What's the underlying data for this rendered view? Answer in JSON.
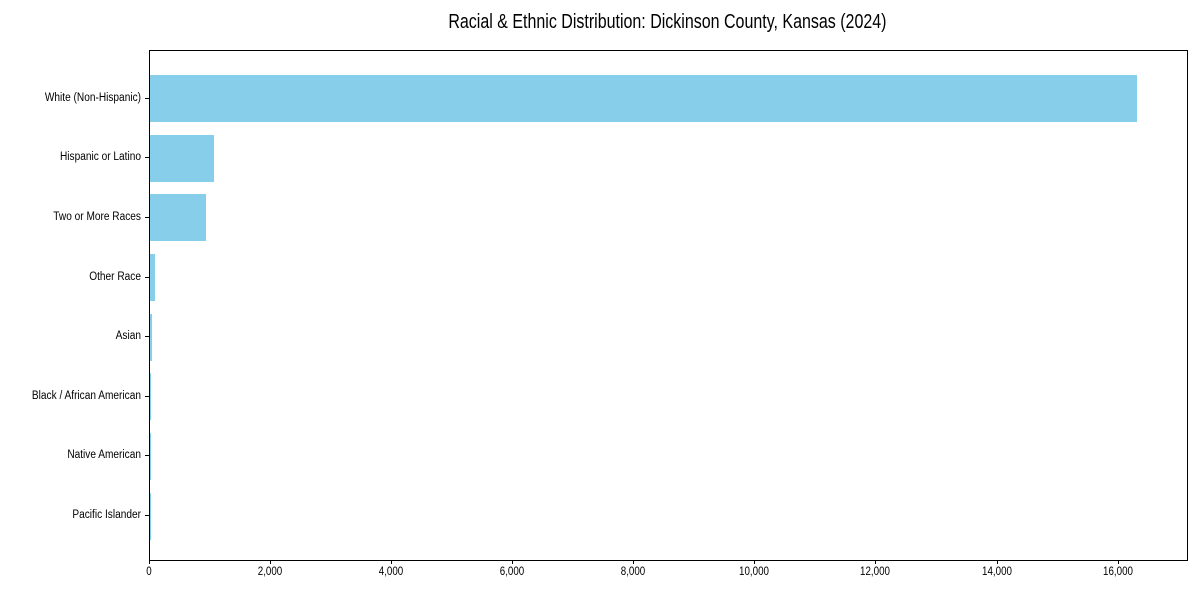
{
  "chart_data": {
    "type": "bar",
    "orientation": "horizontal",
    "title": "Racial & Ethnic Distribution: Dickinson County, Kansas (2024)",
    "categories": [
      "White (Non-Hispanic)",
      "Hispanic or Latino",
      "Two or More Races",
      "Other Race",
      "Asian",
      "Black / African American",
      "Native American",
      "Pacific Islander"
    ],
    "values": [
      16310,
      1050,
      930,
      80,
      40,
      20,
      15,
      5
    ],
    "xlabel": "",
    "ylabel": "",
    "xlim": [
      0,
      17130
    ],
    "x_ticks": [
      0,
      2000,
      4000,
      6000,
      8000,
      10000,
      12000,
      14000,
      16000
    ],
    "x_tick_labels": [
      "0",
      "2,000",
      "4,000",
      "6,000",
      "8,000",
      "10,000",
      "12,000",
      "14,000",
      "16,000"
    ],
    "bar_color": "#87CEEB",
    "grid": false,
    "legend": false,
    "background": "#FFFFFF",
    "axis_color": "#000000"
  }
}
